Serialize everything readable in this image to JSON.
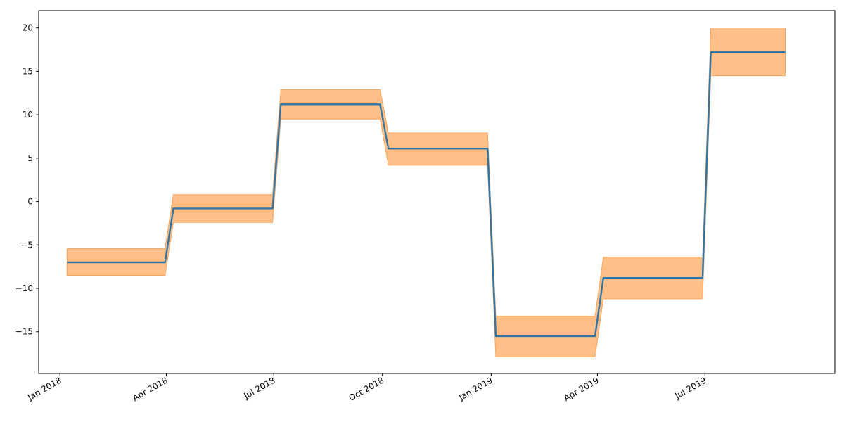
{
  "chart_data": {
    "type": "line",
    "title": "",
    "xlabel": "",
    "ylabel": "",
    "x_axis": {
      "scale": "date",
      "range": [
        "2017-12-14",
        "2019-10-19"
      ],
      "ticks": [
        {
          "date": "2018-01-01",
          "label": "Jan 2018"
        },
        {
          "date": "2018-04-01",
          "label": "Apr 2018"
        },
        {
          "date": "2018-07-01",
          "label": "Jul 2018"
        },
        {
          "date": "2018-10-01",
          "label": "Oct 2018"
        },
        {
          "date": "2019-01-01",
          "label": "Jan 2019"
        },
        {
          "date": "2019-04-01",
          "label": "Apr 2019"
        },
        {
          "date": "2019-07-01",
          "label": "Jul 2019"
        }
      ],
      "tick_label_rotation": 30
    },
    "y_axis": {
      "range": [
        -19.8,
        22
      ],
      "ticks": [
        {
          "value": -15,
          "label": "−15"
        },
        {
          "value": -10,
          "label": "−10"
        },
        {
          "value": -5,
          "label": "−5"
        },
        {
          "value": 0,
          "label": "0"
        },
        {
          "value": 5,
          "label": "5"
        },
        {
          "value": 10,
          "label": "10"
        },
        {
          "value": 15,
          "label": "15"
        },
        {
          "value": 20,
          "label": "20"
        }
      ]
    },
    "grid": false,
    "colors": {
      "line": "#2f77a8",
      "band": "#ffbf86",
      "band_edge": "#f5a35f"
    },
    "series": [
      {
        "kind": "line",
        "points": [
          {
            "x": "2018-01-07",
            "y": -7.0
          },
          {
            "x": "2018-03-31",
            "y": -7.0
          },
          {
            "x": "2018-04-07",
            "y": -0.8
          },
          {
            "x": "2018-06-30",
            "y": -0.8
          },
          {
            "x": "2018-07-07",
            "y": 11.2
          },
          {
            "x": "2018-09-29",
            "y": 11.2
          },
          {
            "x": "2018-10-06",
            "y": 6.1
          },
          {
            "x": "2018-12-29",
            "y": 6.1
          },
          {
            "x": "2019-01-05",
            "y": -15.5
          },
          {
            "x": "2019-03-30",
            "y": -15.5
          },
          {
            "x": "2019-04-06",
            "y": -8.8
          },
          {
            "x": "2019-06-29",
            "y": -8.8
          },
          {
            "x": "2019-07-06",
            "y": 17.2
          },
          {
            "x": "2019-09-07",
            "y": 17.2
          }
        ]
      },
      {
        "kind": "band",
        "points": [
          {
            "x": "2018-01-07",
            "low": -8.5,
            "high": -5.4
          },
          {
            "x": "2018-03-31",
            "low": -8.5,
            "high": -5.4
          },
          {
            "x": "2018-04-07",
            "low": -2.4,
            "high": 0.8
          },
          {
            "x": "2018-06-30",
            "low": -2.4,
            "high": 0.8
          },
          {
            "x": "2018-07-07",
            "low": 9.5,
            "high": 12.9
          },
          {
            "x": "2018-09-29",
            "low": 9.5,
            "high": 12.9
          },
          {
            "x": "2018-10-06",
            "low": 4.2,
            "high": 7.9
          },
          {
            "x": "2018-12-29",
            "low": 4.2,
            "high": 7.9
          },
          {
            "x": "2019-01-05",
            "low": -17.9,
            "high": -13.2
          },
          {
            "x": "2019-03-30",
            "low": -17.9,
            "high": -13.2
          },
          {
            "x": "2019-04-06",
            "low": -11.2,
            "high": -6.4
          },
          {
            "x": "2019-06-29",
            "low": -11.2,
            "high": -6.4
          },
          {
            "x": "2019-07-06",
            "low": 14.5,
            "high": 19.9
          },
          {
            "x": "2019-09-07",
            "low": 14.5,
            "high": 19.9
          }
        ]
      }
    ]
  }
}
